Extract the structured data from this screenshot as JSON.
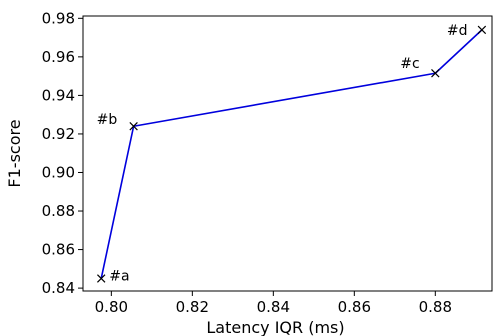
{
  "chart_data": {
    "type": "line",
    "xlabel": "Latency IQR (ms)",
    "ylabel": "F1-score",
    "xlim": [
      0.793,
      0.894
    ],
    "ylim": [
      0.8385,
      0.9812
    ],
    "xticks": [
      0.8,
      0.82,
      0.84,
      0.86,
      0.88
    ],
    "xtick_labels": [
      "0.80",
      "0.82",
      "0.84",
      "0.86",
      "0.88"
    ],
    "yticks": [
      0.84,
      0.86,
      0.88,
      0.9,
      0.92,
      0.94,
      0.96,
      0.98
    ],
    "ytick_labels": [
      "0.84",
      "0.86",
      "0.88",
      "0.90",
      "0.92",
      "0.94",
      "0.96",
      "0.98"
    ],
    "grid": false,
    "line_color": "#0000dd",
    "marker": "x",
    "series": [
      {
        "x": [
          0.7975,
          0.8055,
          0.88,
          0.8915
        ],
        "y": [
          0.845,
          0.924,
          0.9515,
          0.974
        ],
        "labels": [
          "#a",
          "#b",
          "#c",
          "#d"
        ]
      }
    ]
  }
}
